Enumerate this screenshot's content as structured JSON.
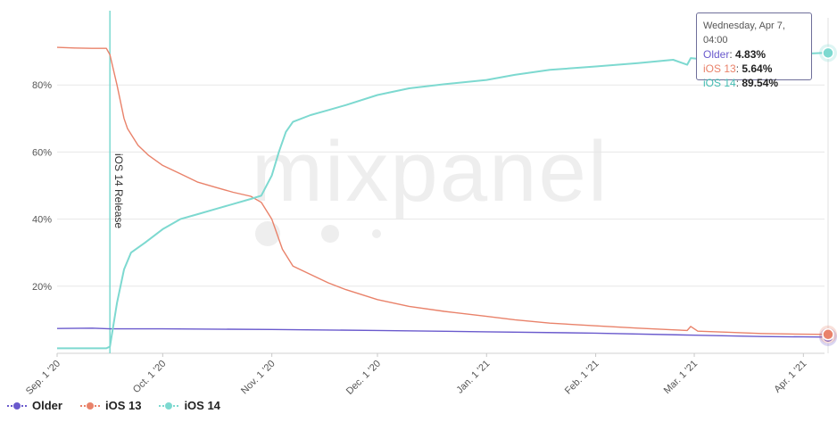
{
  "chart_data": {
    "type": "line",
    "title": "",
    "xlabel": "",
    "ylabel": "",
    "ylim": [
      0,
      100
    ],
    "y_ticks": [
      "20%",
      "40%",
      "60%",
      "80%"
    ],
    "y_tick_values": [
      20,
      40,
      60,
      80
    ],
    "x_ticks": [
      "Sep. 1 '20",
      "Oct. 1 '20",
      "Nov. 1 '20",
      "Dec. 1 '20",
      "Jan. 1 '21",
      "Feb. 1 '21",
      "Mar. 1 '21",
      "Apr. 1 '21"
    ],
    "x_tick_days": [
      0,
      30,
      61,
      91,
      122,
      153,
      181,
      212
    ],
    "x_range_days": [
      0,
      218
    ],
    "grid": "horizontal",
    "annotation": {
      "label": "iOS 14 Release",
      "day": 15
    },
    "watermark": "mixpanel",
    "legend_position": "bottom-left",
    "series": [
      {
        "name": "Older",
        "color": "#6a5acd",
        "points": [
          [
            0,
            7.4
          ],
          [
            10,
            7.5
          ],
          [
            15,
            7.3
          ],
          [
            30,
            7.3
          ],
          [
            61,
            7.1
          ],
          [
            91,
            6.8
          ],
          [
            122,
            6.4
          ],
          [
            153,
            6.0
          ],
          [
            181,
            5.4
          ],
          [
            200,
            5.0
          ],
          [
            212,
            4.9
          ],
          [
            218,
            4.83
          ]
        ]
      },
      {
        "name": "iOS 13",
        "color": "#e9826a",
        "points": [
          [
            0,
            91.2
          ],
          [
            5,
            91.0
          ],
          [
            10,
            90.9
          ],
          [
            14,
            90.9
          ],
          [
            15,
            89.0
          ],
          [
            17,
            80
          ],
          [
            19,
            70
          ],
          [
            20,
            67.0
          ],
          [
            23,
            62
          ],
          [
            26,
            59
          ],
          [
            30,
            56
          ],
          [
            35,
            53.5
          ],
          [
            40,
            51
          ],
          [
            45,
            49.5
          ],
          [
            50,
            48
          ],
          [
            55,
            46.8
          ],
          [
            58,
            45
          ],
          [
            61,
            40
          ],
          [
            64,
            31
          ],
          [
            67,
            26
          ],
          [
            72,
            23.5
          ],
          [
            77,
            21
          ],
          [
            82,
            19
          ],
          [
            91,
            16
          ],
          [
            100,
            14
          ],
          [
            110,
            12.5
          ],
          [
            122,
            11.0
          ],
          [
            130,
            10.0
          ],
          [
            140,
            9.0
          ],
          [
            153,
            8.2
          ],
          [
            165,
            7.5
          ],
          [
            175,
            7.0
          ],
          [
            179,
            6.8
          ],
          [
            180,
            8.0
          ],
          [
            182,
            6.6
          ],
          [
            190,
            6.3
          ],
          [
            200,
            5.9
          ],
          [
            212,
            5.7
          ],
          [
            218,
            5.64
          ]
        ]
      },
      {
        "name": "iOS 14",
        "color": "#7dd9d0",
        "points": [
          [
            0,
            1.5
          ],
          [
            14,
            1.5
          ],
          [
            15,
            2.0
          ],
          [
            17,
            15
          ],
          [
            19,
            25
          ],
          [
            21,
            30
          ],
          [
            25,
            33
          ],
          [
            30,
            37
          ],
          [
            35,
            40
          ],
          [
            40,
            41.5
          ],
          [
            45,
            43
          ],
          [
            50,
            44.5
          ],
          [
            55,
            46
          ],
          [
            58,
            47
          ],
          [
            61,
            53
          ],
          [
            63,
            60
          ],
          [
            65,
            66
          ],
          [
            67,
            69
          ],
          [
            72,
            71
          ],
          [
            77,
            72.5
          ],
          [
            82,
            74
          ],
          [
            91,
            77
          ],
          [
            100,
            79
          ],
          [
            110,
            80.2
          ],
          [
            122,
            81.5
          ],
          [
            130,
            83.0
          ],
          [
            140,
            84.5
          ],
          [
            153,
            85.5
          ],
          [
            165,
            86.5
          ],
          [
            175,
            87.5
          ],
          [
            179,
            86.0
          ],
          [
            180,
            88.0
          ],
          [
            185,
            87.5
          ],
          [
            190,
            88.3
          ],
          [
            200,
            88.8
          ],
          [
            205,
            89.0
          ],
          [
            212,
            89.3
          ],
          [
            218,
            89.54
          ]
        ]
      }
    ]
  },
  "legend": {
    "older": {
      "label": "Older",
      "color": "#6a5acd"
    },
    "ios13": {
      "label": "iOS 13",
      "color": "#e9826a"
    },
    "ios14": {
      "label": "iOS 14",
      "color": "#7dd9d0"
    }
  },
  "tooltip": {
    "date": "Wednesday, Apr 7, 04:00",
    "rows": [
      {
        "name": "Older",
        "value": "4.83%",
        "color": "#6a5acd"
      },
      {
        "name": "iOS 13",
        "value": "5.64%",
        "color": "#e9826a"
      },
      {
        "name": "iOS 14",
        "value": "89.54%",
        "color": "#7dd9d0"
      }
    ]
  }
}
